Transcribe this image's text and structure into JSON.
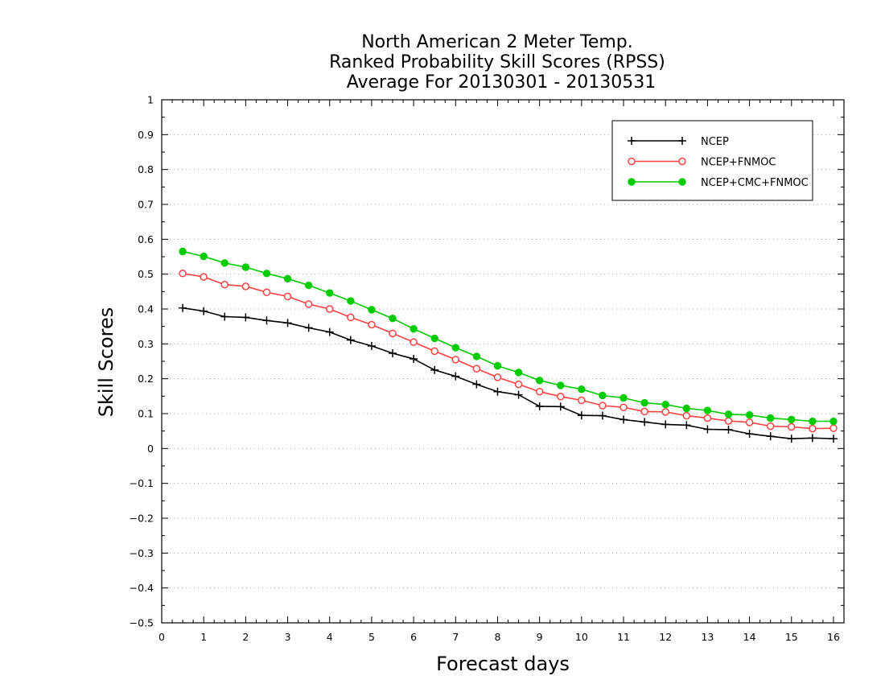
{
  "chart_data": {
    "type": "line",
    "title": [
      "North American 2 Meter Temp.",
      "Ranked Probability Skill Scores (RPSS)",
      "Average For 20130301 - 20130531"
    ],
    "xlabel": "Forecast days",
    "ylabel": "Skill Scores",
    "xlim": [
      0,
      16.25
    ],
    "ylim": [
      -0.5,
      1
    ],
    "xticks": [
      0,
      1,
      2,
      3,
      4,
      5,
      6,
      7,
      8,
      9,
      10,
      11,
      12,
      13,
      14,
      15,
      16
    ],
    "yticks": [
      -0.5,
      -0.4,
      -0.3,
      -0.2,
      -0.1,
      0,
      0.1,
      0.2,
      0.3,
      0.4,
      0.5,
      0.6,
      0.7,
      0.8,
      0.9,
      1
    ],
    "ytick_labels": [
      "−0.5",
      "−0.4",
      "−0.3",
      "−0.2",
      "−0.1",
      "0",
      "0.1",
      "0.2",
      "0.3",
      "0.4",
      "0.5",
      "0.6",
      "0.7",
      "0.8",
      "0.9",
      "1"
    ],
    "grid": "horizontal dotted",
    "legend_position": "top-right",
    "x": [
      0.5,
      1,
      1.5,
      2,
      2.5,
      3,
      3.5,
      4,
      4.5,
      5,
      5.5,
      6,
      6.5,
      7,
      7.5,
      8,
      8.5,
      9,
      9.5,
      10,
      10.5,
      11,
      11.5,
      12,
      12.5,
      13,
      13.5,
      14,
      14.5,
      15,
      15.5,
      16
    ],
    "series": [
      {
        "name": "NCEP",
        "color": "#000000",
        "marker": "plus",
        "values": [
          0.403,
          0.394,
          0.378,
          0.376,
          0.367,
          0.36,
          0.346,
          0.334,
          0.311,
          0.294,
          0.273,
          0.257,
          0.225,
          0.207,
          0.184,
          0.163,
          0.154,
          0.121,
          0.12,
          0.095,
          0.094,
          0.083,
          0.076,
          0.069,
          0.067,
          0.055,
          0.054,
          0.042,
          0.035,
          0.028,
          0.03,
          0.028
        ]
      },
      {
        "name": "NCEP+FNMOC",
        "color": "#ff4040",
        "marker": "open-circle",
        "values": [
          0.502,
          0.492,
          0.47,
          0.465,
          0.448,
          0.436,
          0.414,
          0.4,
          0.376,
          0.355,
          0.33,
          0.305,
          0.279,
          0.255,
          0.229,
          0.204,
          0.184,
          0.163,
          0.149,
          0.138,
          0.123,
          0.118,
          0.106,
          0.105,
          0.094,
          0.087,
          0.079,
          0.075,
          0.064,
          0.062,
          0.057,
          0.058
        ]
      },
      {
        "name": "NCEP+CMC+FNMOC",
        "color": "#00cc00",
        "marker": "filled-circle",
        "values": [
          0.565,
          0.551,
          0.532,
          0.52,
          0.502,
          0.487,
          0.468,
          0.446,
          0.423,
          0.398,
          0.373,
          0.343,
          0.316,
          0.289,
          0.264,
          0.237,
          0.218,
          0.195,
          0.181,
          0.17,
          0.152,
          0.145,
          0.131,
          0.126,
          0.115,
          0.109,
          0.098,
          0.096,
          0.087,
          0.083,
          0.078,
          0.078
        ]
      }
    ]
  }
}
